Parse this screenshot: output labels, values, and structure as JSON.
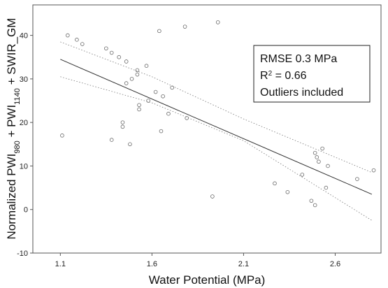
{
  "chart_data": {
    "type": "scatter",
    "xlabel": "Water Potential (MPa)",
    "ylabel": {
      "prefix": "Normalized PWI",
      "sub1": "980",
      "mid": " + PWI",
      "sub2": "1140",
      "suffix": " + SWIR_GM"
    },
    "xlim": [
      0.95,
      2.85
    ],
    "ylim": [
      -10,
      47
    ],
    "xticks": [
      1.1,
      1.6,
      2.1,
      2.6
    ],
    "xtick_labels": [
      "1.1",
      "1.6",
      "2.1",
      "2.6"
    ],
    "yticks": [
      -10,
      0,
      10,
      20,
      30,
      40
    ],
    "ytick_labels": [
      "-10",
      "0",
      "10",
      "20",
      "30",
      "40"
    ],
    "grid": false,
    "annotation": {
      "line1": "RMSE 0.3 MPa",
      "line2_prefix": "R",
      "line2_sup": "2",
      "line2_suffix": " = 0.66",
      "line3": "Outliers included"
    },
    "points": [
      {
        "x": 1.11,
        "y": 17
      },
      {
        "x": 1.14,
        "y": 40
      },
      {
        "x": 1.19,
        "y": 39
      },
      {
        "x": 1.22,
        "y": 38
      },
      {
        "x": 1.35,
        "y": 37
      },
      {
        "x": 1.38,
        "y": 36
      },
      {
        "x": 1.42,
        "y": 35
      },
      {
        "x": 1.46,
        "y": 34
      },
      {
        "x": 1.52,
        "y": 32
      },
      {
        "x": 1.57,
        "y": 33
      },
      {
        "x": 1.49,
        "y": 30
      },
      {
        "x": 1.52,
        "y": 31
      },
      {
        "x": 1.46,
        "y": 29
      },
      {
        "x": 1.62,
        "y": 27
      },
      {
        "x": 1.58,
        "y": 25
      },
      {
        "x": 1.66,
        "y": 26
      },
      {
        "x": 1.71,
        "y": 28
      },
      {
        "x": 1.53,
        "y": 24
      },
      {
        "x": 1.53,
        "y": 23
      },
      {
        "x": 1.69,
        "y": 22
      },
      {
        "x": 1.79,
        "y": 21
      },
      {
        "x": 1.44,
        "y": 20
      },
      {
        "x": 1.44,
        "y": 19
      },
      {
        "x": 1.38,
        "y": 16
      },
      {
        "x": 1.48,
        "y": 15
      },
      {
        "x": 1.65,
        "y": 18
      },
      {
        "x": 1.64,
        "y": 41
      },
      {
        "x": 1.78,
        "y": 42
      },
      {
        "x": 1.96,
        "y": 43
      },
      {
        "x": 1.93,
        "y": 3
      },
      {
        "x": 2.27,
        "y": 6
      },
      {
        "x": 2.34,
        "y": 4
      },
      {
        "x": 2.42,
        "y": 8
      },
      {
        "x": 2.47,
        "y": 2
      },
      {
        "x": 2.49,
        "y": 1
      },
      {
        "x": 2.49,
        "y": 13
      },
      {
        "x": 2.5,
        "y": 12
      },
      {
        "x": 2.51,
        "y": 11
      },
      {
        "x": 2.53,
        "y": 14
      },
      {
        "x": 2.56,
        "y": 10
      },
      {
        "x": 2.55,
        "y": 5
      },
      {
        "x": 2.72,
        "y": 7
      },
      {
        "x": 2.81,
        "y": 9
      }
    ],
    "fit_line": {
      "x": [
        1.1,
        2.8
      ],
      "y": [
        34.5,
        3.5
      ]
    },
    "confidence_upper": {
      "x": [
        1.1,
        1.6,
        2.1,
        2.8
      ],
      "y": [
        38.5,
        30.5,
        20.8,
        8.5
      ]
    },
    "confidence_lower": {
      "x": [
        1.1,
        1.6,
        2.1,
        2.8
      ],
      "y": [
        30.5,
        24.5,
        15.8,
        -2.5
      ]
    }
  }
}
